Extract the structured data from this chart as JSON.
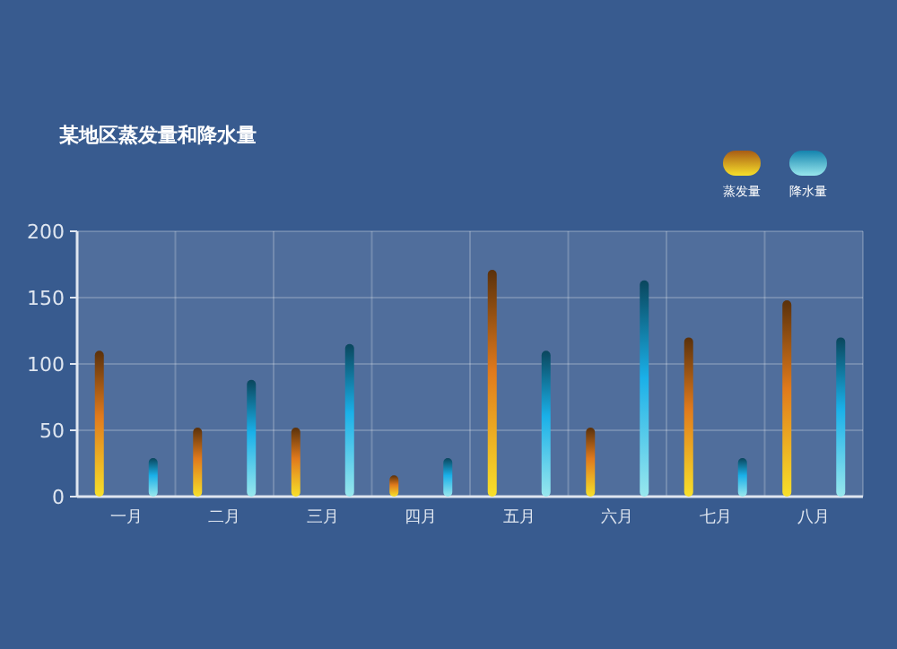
{
  "chart_data": {
    "type": "bar",
    "title": "某地区蒸发量和降水量",
    "categories": [
      "一月",
      "二月",
      "三月",
      "四月",
      "五月",
      "六月",
      "七月",
      "八月"
    ],
    "series": [
      {
        "name": "蒸发量",
        "color": "#e07a1c",
        "values": [
          110,
          52,
          52,
          16,
          171,
          52,
          120,
          148
        ]
      },
      {
        "name": "降水量",
        "color": "#1ab0e8",
        "values": [
          29,
          88,
          115,
          29,
          110,
          163,
          29,
          120
        ]
      }
    ],
    "ylim": [
      0,
      200
    ],
    "yticks": [
      0,
      50,
      100,
      150,
      200
    ],
    "grid": true,
    "legend": "top right"
  }
}
